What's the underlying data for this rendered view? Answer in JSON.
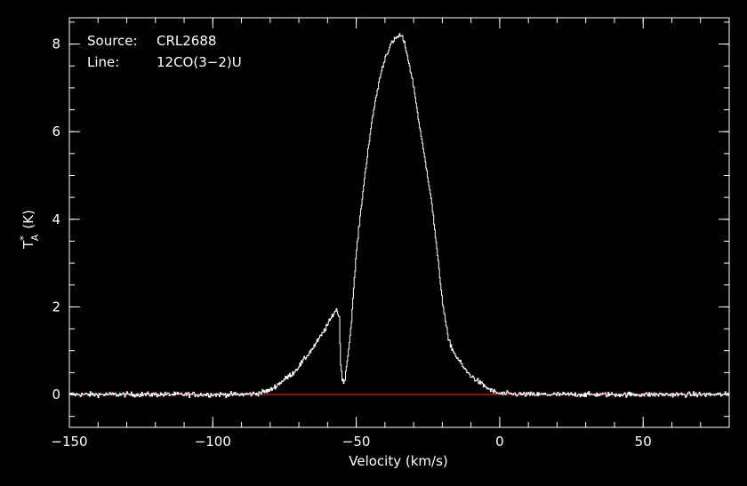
{
  "chart_data": {
    "type": "line",
    "xlabel": "Velocity (km/s)",
    "ylabel_main": "T",
    "ylabel_sup": "*",
    "ylabel_sub": "A",
    "ylabel_unit": "(K)",
    "xlim": [
      -150,
      80
    ],
    "ylim": [
      -0.75,
      8.6
    ],
    "x_ticks": [
      -150,
      -100,
      -50,
      0,
      50
    ],
    "x_tick_labels": [
      "−150",
      "−100",
      "−50",
      "0",
      "50"
    ],
    "y_ticks": [
      0,
      2,
      4,
      6,
      8
    ],
    "y_tick_labels": [
      "0",
      "2",
      "4",
      "6",
      "8"
    ],
    "x_minor_step": 10,
    "y_minor_step": 0.5,
    "source_label": "Source:",
    "source_value": "CRL2688",
    "line_label": "Line:",
    "line_value": "12CO(3−2)U",
    "baseline": 0,
    "colors": {
      "background": "#000000",
      "axes": "#ffffff",
      "spectrum": "#ffffff",
      "baseline": "#ff2a2a"
    },
    "series": [
      {
        "values_x": [
          -150,
          -140,
          -130,
          -120,
          -110,
          -100,
          -90,
          -85,
          -80,
          -78,
          -75,
          -72,
          -70,
          -68,
          -65,
          -62,
          -60,
          -58,
          -57,
          -56,
          -55.6,
          -55,
          -54.5,
          -54,
          -53,
          -52,
          -51,
          -50,
          -48,
          -46,
          -44,
          -42,
          -40,
          -38,
          -36,
          -35,
          -34,
          -33,
          -32,
          -30,
          -28,
          -26,
          -24,
          -22,
          -20,
          -18,
          -16,
          -14,
          -12,
          -10,
          -8,
          -6,
          -4,
          -2,
          0,
          10,
          20,
          30,
          40,
          50,
          60,
          70,
          80
        ],
        "values_y": [
          0,
          0,
          0,
          0,
          0,
          0,
          0,
          0.02,
          0.1,
          0.2,
          0.35,
          0.5,
          0.65,
          0.82,
          1.08,
          1.38,
          1.6,
          1.85,
          1.95,
          1.75,
          0.8,
          0.35,
          0.25,
          0.4,
          0.9,
          1.5,
          2.4,
          3.3,
          4.5,
          5.6,
          6.5,
          7.2,
          7.7,
          8.0,
          8.15,
          8.2,
          8.15,
          7.95,
          7.65,
          7.0,
          6.1,
          5.3,
          4.5,
          3.3,
          2.1,
          1.25,
          0.95,
          0.75,
          0.55,
          0.42,
          0.32,
          0.22,
          0.13,
          0.06,
          0.02,
          0,
          0,
          0,
          0,
          0,
          0,
          0,
          0
        ]
      }
    ]
  }
}
